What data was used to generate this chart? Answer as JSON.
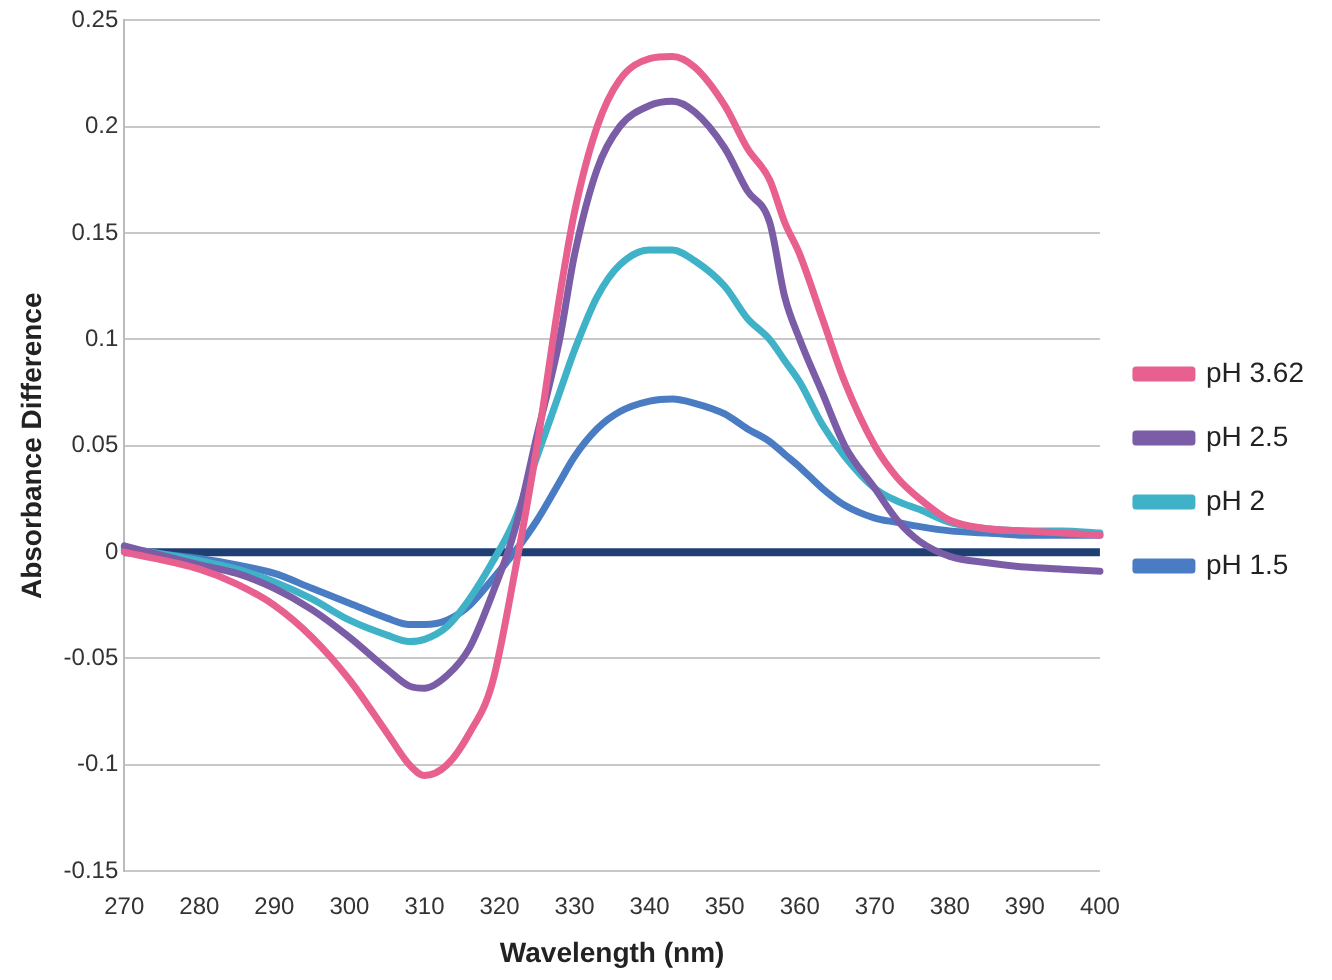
{
  "chart_data": {
    "type": "line",
    "xlabel": "Wavelength (nm)",
    "ylabel": "Absorbance Difference",
    "xlim": [
      270,
      400
    ],
    "xticks": [
      270,
      280,
      290,
      300,
      310,
      320,
      330,
      340,
      350,
      360,
      370,
      380,
      390,
      400
    ],
    "ylim": [
      -0.15,
      0.25
    ],
    "yticks": [
      -0.15,
      -0.1,
      -0.05,
      0,
      0.05,
      0.1,
      0.15,
      0.2,
      0.25
    ],
    "grid": "y",
    "legend": "right",
    "ref_lines": [
      {
        "axis": "y",
        "value": 0,
        "color": "#1f3f73",
        "line_style": "solid"
      }
    ],
    "marker": "none",
    "line_style": "solid",
    "x": [
      270,
      280,
      285,
      290,
      295,
      300,
      305,
      308,
      310,
      313,
      316,
      319,
      322,
      325,
      328,
      330,
      333,
      336,
      340,
      343,
      346,
      350,
      353,
      356,
      358,
      360,
      363,
      366,
      370,
      373,
      376,
      380,
      385,
      390,
      395,
      400
    ],
    "series": [
      {
        "name": "pH 3.62",
        "color": "#e8608f",
        "values": [
          0,
          -0.008,
          -0.015,
          -0.025,
          -0.04,
          -0.06,
          -0.085,
          -0.1,
          -0.105,
          -0.1,
          -0.085,
          -0.062,
          -0.01,
          0.05,
          0.12,
          0.16,
          0.2,
          0.222,
          0.232,
          0.233,
          0.228,
          0.21,
          0.19,
          0.175,
          0.155,
          0.14,
          0.11,
          0.08,
          0.05,
          0.035,
          0.025,
          0.015,
          0.011,
          0.01,
          0.009,
          0.008
        ]
      },
      {
        "name": "pH 2.5",
        "color": "#7b5ca6",
        "values": [
          0.003,
          -0.006,
          -0.01,
          -0.017,
          -0.027,
          -0.04,
          -0.055,
          -0.063,
          -0.064,
          -0.058,
          -0.045,
          -0.02,
          0.01,
          0.055,
          0.1,
          0.14,
          0.18,
          0.2,
          0.21,
          0.212,
          0.207,
          0.19,
          0.17,
          0.155,
          0.12,
          0.1,
          0.075,
          0.05,
          0.03,
          0.015,
          0.005,
          -0.002,
          -0.005,
          -0.007,
          -0.008,
          -0.009
        ]
      },
      {
        "name": "pH 2",
        "color": "#3fb2c8",
        "values": [
          0.002,
          -0.004,
          -0.008,
          -0.014,
          -0.022,
          -0.032,
          -0.039,
          -0.042,
          -0.041,
          -0.035,
          -0.022,
          -0.005,
          0.015,
          0.045,
          0.075,
          0.095,
          0.12,
          0.135,
          0.142,
          0.142,
          0.137,
          0.125,
          0.11,
          0.1,
          0.09,
          0.08,
          0.06,
          0.045,
          0.03,
          0.024,
          0.02,
          0.014,
          0.011,
          0.01,
          0.01,
          0.009
        ]
      },
      {
        "name": "pH 1.5",
        "color": "#4a7cc4",
        "values": [
          0.001,
          -0.003,
          -0.006,
          -0.01,
          -0.017,
          -0.024,
          -0.031,
          -0.034,
          -0.034,
          -0.032,
          -0.025,
          -0.013,
          0,
          0.015,
          0.033,
          0.045,
          0.058,
          0.066,
          0.071,
          0.072,
          0.07,
          0.065,
          0.058,
          0.052,
          0.046,
          0.04,
          0.03,
          0.022,
          0.016,
          0.014,
          0.012,
          0.01,
          0.009,
          0.008,
          0.008,
          0.008
        ]
      }
    ]
  }
}
